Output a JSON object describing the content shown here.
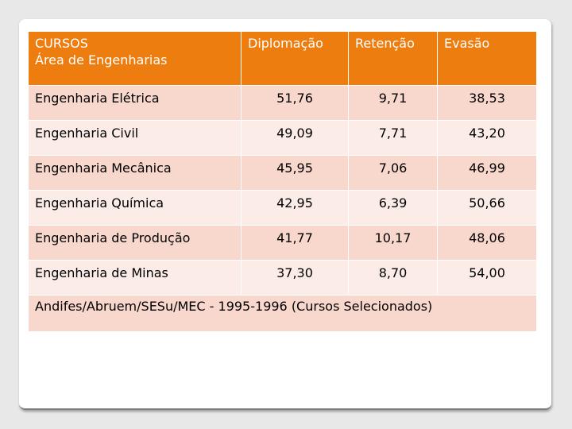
{
  "table": {
    "header": {
      "course_line1": "CURSOS",
      "course_line2": "Área de Engenharias",
      "columns": [
        "Diplomação",
        "Retenção",
        "Evasão"
      ]
    },
    "rows": [
      {
        "name": "Engenharia Elétrica",
        "diplomacao": "51,76",
        "retencao": "9,71",
        "evasao": "38,53"
      },
      {
        "name": "Engenharia Civil",
        "diplomacao": "49,09",
        "retencao": "7,71",
        "evasao": "43,20"
      },
      {
        "name": "Engenharia Mecânica",
        "diplomacao": "45,95",
        "retencao": "7,06",
        "evasao": "46,99"
      },
      {
        "name": "Engenharia Química",
        "diplomacao": "42,95",
        "retencao": "6,39",
        "evasao": "50,66"
      },
      {
        "name": "Engenharia de Produção",
        "diplomacao": "41,77",
        "retencao": "10,17",
        "evasao": "48,06"
      },
      {
        "name": "Engenharia de Minas",
        "diplomacao": "37,30",
        "retencao": "8,70",
        "evasao": "54,00"
      }
    ],
    "source": "Andifes/Abruem/SESu/MEC - 1995-1996 (Cursos Selecionados)"
  },
  "colors": {
    "header_bg": "#ed7d0e",
    "row_dark": "#f8d7cc",
    "row_light": "#fbece7"
  }
}
